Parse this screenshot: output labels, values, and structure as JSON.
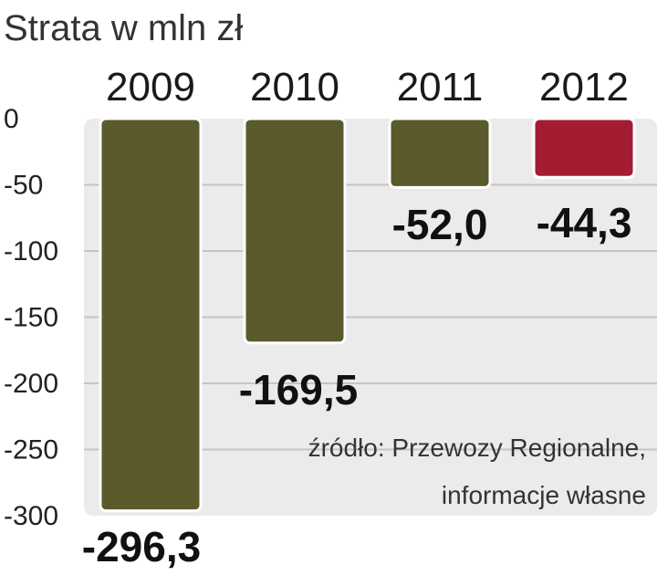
{
  "chart_data": {
    "type": "bar",
    "title": "Strata w mln zł",
    "categories": [
      "2009",
      "2010",
      "2011",
      "2012"
    ],
    "values": [
      -296.3,
      -169.5,
      -52.0,
      -44.3
    ],
    "value_labels": [
      "-296,3",
      "-169,5",
      "-52,0",
      "-44,3"
    ],
    "bar_colors": [
      "#5a5a2c",
      "#5a5a2c",
      "#5a5a2c",
      "#a31d32"
    ],
    "ylim": [
      -300,
      0
    ],
    "yticks": [
      0,
      -50,
      -100,
      -150,
      -200,
      -250,
      -300
    ],
    "ytick_labels": [
      "0",
      "-50",
      "-100",
      "-150",
      "-200",
      "-250",
      "-300"
    ],
    "grid": true,
    "xlabel": "",
    "ylabel": ""
  },
  "source_lines": [
    "źródło: Przewozy Regionalne,",
    "informacje własne"
  ],
  "colors": {
    "panel": "#ebebeb",
    "grid": "#c4c4c4"
  }
}
